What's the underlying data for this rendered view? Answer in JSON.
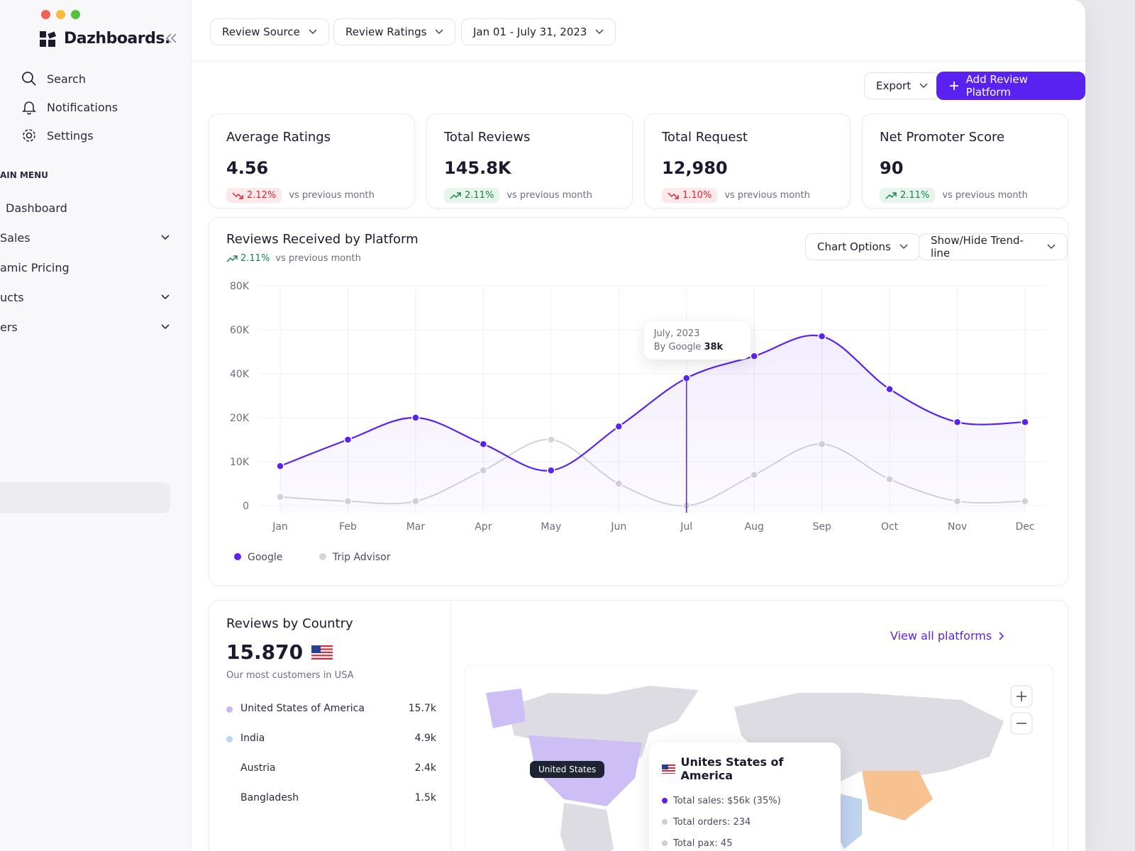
{
  "sidebar": {
    "brand": "Dazhboards.",
    "items": [
      "Search",
      "Notifications",
      "Settings"
    ],
    "section": "AIN MENU",
    "menu": [
      "Dashboard",
      "Sales",
      "amic Pricing",
      "ucts",
      "ers"
    ]
  },
  "filters": [
    "Review Source",
    "Review Ratings",
    "Jan 01 - July 31, 2023"
  ],
  "actions": {
    "export": "Export",
    "add": "Add Review Platform"
  },
  "kpis": [
    {
      "title": "Average Ratings",
      "value": "4.56",
      "change": "2.12%",
      "trend": "down",
      "note": "vs previous month"
    },
    {
      "title": "Total Reviews",
      "value": "145.8K",
      "change": "2.11%",
      "trend": "up",
      "note": "vs previous month"
    },
    {
      "title": "Total Request",
      "value": "12,980",
      "change": "1.10%",
      "trend": "down",
      "note": "vs previous month"
    },
    {
      "title": "Net Promoter Score",
      "value": "90",
      "change": "2.11%",
      "trend": "up",
      "note": "vs previous month"
    }
  ],
  "chart": {
    "type": "line",
    "title": "Reviews Received by Platform",
    "change": "2.11%",
    "trend": "up",
    "note": "vs previous month",
    "options": [
      "Chart Options",
      "Show/Hide Trend-line"
    ],
    "categories": [
      "Jan",
      "Feb",
      "Mar",
      "Apr",
      "May",
      "Jun",
      "Jul",
      "Aug",
      "Sep",
      "Oct",
      "Nov",
      "Dec"
    ],
    "series": [
      {
        "name": "Google",
        "color": "#5a22f0",
        "values": [
          9000,
          15000,
          20000,
          14000,
          8000,
          18000,
          38000,
          48000,
          57000,
          33000,
          19000,
          19000
        ]
      },
      {
        "name": "Trip Advisor",
        "color": "#d4d4d9",
        "values": [
          2000,
          1000,
          1000,
          8000,
          15000,
          5000,
          0,
          7000,
          14000,
          6000,
          1000,
          1000
        ]
      }
    ],
    "ylim": [
      0,
      80000
    ],
    "yticks": [
      0,
      {
        "value": 10000,
        "label": "10K"
      },
      {
        "value": 20000,
        "label": "20K"
      },
      {
        "value": 40000,
        "label": "40K"
      },
      {
        "value": 60000,
        "label": "60K"
      },
      {
        "value": 80000,
        "label": "80K"
      }
    ],
    "tooltip": {
      "title": "July, 2023",
      "label": "By Google",
      "value": "38k"
    }
  },
  "countries": {
    "title": "Reviews by Country",
    "total": "15.870",
    "subtitle": "Our most customers in USA",
    "link": "View all platforms",
    "rows": [
      {
        "name": "United States of America",
        "value": "15.7k",
        "color": "#c9b8f5"
      },
      {
        "name": "India",
        "value": "4.9k",
        "color": "#bcd4f4"
      },
      {
        "name": "Austria",
        "value": "2.4k"
      },
      {
        "name": "Bangladesh",
        "value": "1.5k"
      }
    ],
    "map": {
      "label": "United States",
      "tooltip": {
        "title": "Unites States of America",
        "lines": [
          "Total sales: $56k (35%)",
          "Total orders: 234",
          "Total pax: 45"
        ]
      }
    }
  }
}
